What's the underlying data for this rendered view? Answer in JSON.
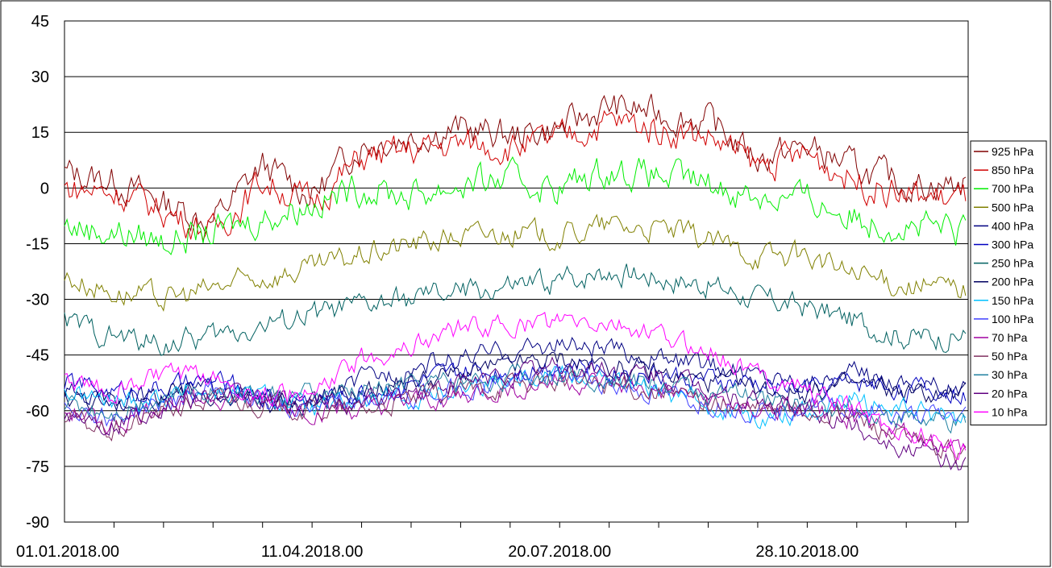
{
  "chart_data": {
    "type": "line",
    "title": "",
    "xlabel": "",
    "ylabel": "",
    "ylim": [
      -90,
      45
    ],
    "y_ticks": [
      "45",
      "30",
      "15",
      "0",
      "-15",
      "-30",
      "-45",
      "-60",
      "-75",
      "-90"
    ],
    "y_tick_values": [
      45,
      30,
      15,
      0,
      -15,
      -30,
      -45,
      -60,
      -75,
      -90
    ],
    "x_range": [
      "2018-01-01",
      "2018-12-31"
    ],
    "x_tick_labels": [
      "01.01.2018.00",
      "11.04.2018.00",
      "20.07.2018.00",
      "28.10.2018.00"
    ],
    "x_tick_dates": [
      "2018-01-01",
      "2018-04-11",
      "2018-07-20",
      "2018-10-28"
    ],
    "x_minor_tick_days": 20,
    "grid": "horizontal",
    "legend_position": "right",
    "x": [
      "2018-01-01",
      "2018-01-21",
      "2018-02-10",
      "2018-03-02",
      "2018-03-22",
      "2018-04-11",
      "2018-05-01",
      "2018-05-21",
      "2018-06-10",
      "2018-06-30",
      "2018-07-20",
      "2018-08-09",
      "2018-08-29",
      "2018-09-18",
      "2018-10-08",
      "2018-10-28",
      "2018-11-17",
      "2018-12-07",
      "2018-12-27"
    ],
    "series": [
      {
        "name": "925 hPa",
        "color": "#800000",
        "values": [
          4,
          2,
          -4,
          -9,
          6,
          -2,
          12,
          14,
          16,
          14,
          16,
          22,
          20,
          18,
          8,
          11,
          5,
          1,
          1
        ]
      },
      {
        "name": "850 hPa",
        "color": "#d00000",
        "values": [
          0,
          -1,
          -6,
          -12,
          2,
          -4,
          8,
          10,
          12,
          11,
          13,
          18,
          16,
          14,
          6,
          9,
          2,
          -2,
          -3
        ]
      },
      {
        "name": "700 hPa",
        "color": "#00ee00",
        "values": [
          -10,
          -12,
          -14,
          -12,
          -8,
          -4,
          0,
          -2,
          1,
          2,
          0,
          5,
          3,
          1,
          -2,
          -3,
          -8,
          -10,
          -12
        ]
      },
      {
        "name": "500 hPa",
        "color": "#808000",
        "values": [
          -24,
          -28,
          -30,
          -27,
          -24,
          -22,
          -18,
          -15,
          -13,
          -12,
          -13,
          -10,
          -11,
          -14,
          -18,
          -18,
          -24,
          -26,
          -27
        ]
      },
      {
        "name": "400 hPa",
        "color": "#000080",
        "values": [
          -55,
          -57,
          -56,
          -54,
          -57,
          -58,
          -52,
          -48,
          -46,
          -44,
          -42,
          -44,
          -46,
          -48,
          -50,
          -52,
          -50,
          -52,
          -54
        ]
      },
      {
        "name": "300 hPa",
        "color": "#0000c0",
        "values": [
          -52,
          -55,
          -54,
          -52,
          -56,
          -57,
          -55,
          -53,
          -50,
          -49,
          -47,
          -49,
          -50,
          -52,
          -53,
          -54,
          -52,
          -54,
          -55
        ]
      },
      {
        "name": "250 hPa",
        "color": "#006060",
        "values": [
          -36,
          -40,
          -42,
          -40,
          -37,
          -34,
          -32,
          -30,
          -28,
          -27,
          -25,
          -22,
          -24,
          -26,
          -30,
          -32,
          -36,
          -40,
          -40
        ]
      },
      {
        "name": "200 hPa",
        "color": "#000060",
        "values": [
          -56,
          -58,
          -56,
          -55,
          -58,
          -58,
          -55,
          -52,
          -50,
          -48,
          -46,
          -48,
          -50,
          -52,
          -54,
          -55,
          -53,
          -55,
          -56
        ]
      },
      {
        "name": "150 hPa",
        "color": "#00c0ff",
        "values": [
          -55,
          -58,
          -56,
          -55,
          -56,
          -60,
          -58,
          -57,
          -54,
          -51,
          -49,
          -52,
          -55,
          -58,
          -62,
          -60,
          -58,
          -60,
          -62
        ]
      },
      {
        "name": "100 hPa",
        "color": "#4040ff",
        "values": [
          -58,
          -62,
          -58,
          -54,
          -57,
          -59,
          -58,
          -56,
          -54,
          -52,
          -50,
          -53,
          -56,
          -58,
          -60,
          -58,
          -60,
          -62,
          -62
        ]
      },
      {
        "name": "70 hPa",
        "color": "#a000a0",
        "values": [
          -60,
          -64,
          -58,
          -56,
          -58,
          -60,
          -60,
          -58,
          -56,
          -54,
          -52,
          -53,
          -55,
          -57,
          -60,
          -60,
          -62,
          -66,
          -70
        ]
      },
      {
        "name": "50 hPa",
        "color": "#803060",
        "values": [
          -62,
          -66,
          -60,
          -57,
          -58,
          -60,
          -60,
          -57,
          -55,
          -53,
          -52,
          -53,
          -55,
          -58,
          -60,
          -60,
          -62,
          -68,
          -72
        ]
      },
      {
        "name": "30 hPa",
        "color": "#2080a0",
        "values": [
          -58,
          -60,
          -56,
          -54,
          -56,
          -56,
          -55,
          -53,
          -52,
          -51,
          -50,
          -51,
          -53,
          -55,
          -57,
          -58,
          -60,
          -62,
          -64
        ]
      },
      {
        "name": "20 hPa",
        "color": "#600080",
        "values": [
          -60,
          -64,
          -58,
          -56,
          -57,
          -58,
          -58,
          -55,
          -53,
          -50,
          -48,
          -49,
          -51,
          -54,
          -58,
          -60,
          -64,
          -70,
          -74
        ]
      },
      {
        "name": "10 hPa",
        "color": "#ff00ff",
        "values": [
          -52,
          -55,
          -50,
          -52,
          -55,
          -56,
          -46,
          -42,
          -38,
          -37,
          -36,
          -37,
          -40,
          -44,
          -50,
          -54,
          -60,
          -66,
          -70
        ]
      }
    ]
  }
}
